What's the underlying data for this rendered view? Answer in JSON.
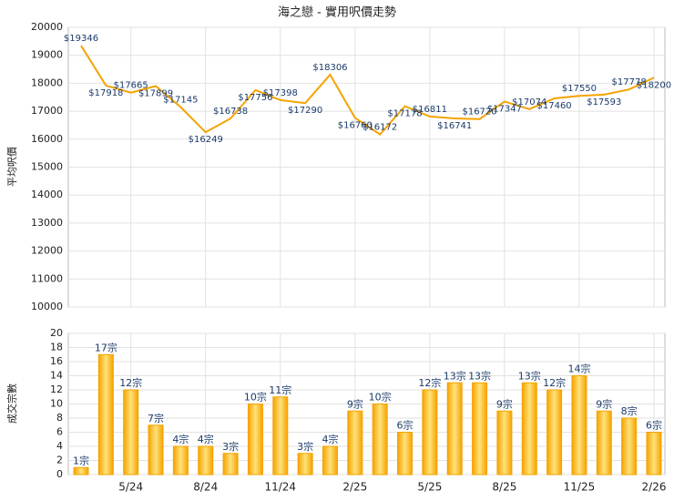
{
  "chart_data": [
    {
      "type": "line",
      "title": "海之戀 - 實用呎價走勢",
      "y_label": "平均呎價",
      "color": "#f5a300",
      "values": [
        19346,
        17918,
        17665,
        17899,
        17145,
        16249,
        16738,
        17756,
        17398,
        17290,
        18306,
        16760,
        16172,
        17178,
        16811,
        16741,
        16720,
        17347,
        17074,
        17460,
        17550,
        17593,
        17778,
        18200
      ],
      "value_labels": [
        "$19346",
        "$17918",
        "$17665",
        "$17899",
        "$17145",
        "$16249",
        "$16738",
        "$17756",
        "$17398",
        "$17290",
        "$18306",
        "$16760",
        "$16172",
        "$17178",
        "$16811",
        "$16741",
        "$16720",
        "$17347",
        "$17074",
        "$17460",
        "$17550",
        "$17593",
        "$17778",
        "$18200"
      ],
      "ylim": [
        10000,
        20000
      ],
      "yticks": [
        10000,
        11000,
        12000,
        13000,
        14000,
        15000,
        16000,
        17000,
        18000,
        19000,
        20000
      ],
      "grid": true
    },
    {
      "type": "bar",
      "y_label": "成交宗數",
      "color": "#f5a300",
      "categories": [
        null,
        null,
        "5/24",
        null,
        null,
        "8/24",
        null,
        null,
        "11/24",
        null,
        null,
        "2/25",
        null,
        null,
        "5/25",
        null,
        null,
        "8/25",
        null,
        null,
        "11/25",
        null,
        null,
        "2/26"
      ],
      "values": [
        1,
        17,
        12,
        7,
        4,
        4,
        3,
        10,
        11,
        3,
        4,
        9,
        10,
        6,
        12,
        13,
        13,
        9,
        13,
        12,
        14,
        9,
        8,
        6
      ],
      "value_labels": [
        "1宗",
        "17宗",
        "12宗",
        "7宗",
        "4宗",
        "4宗",
        "3宗",
        "10宗",
        "11宗",
        "3宗",
        "4宗",
        "9宗",
        "10宗",
        "6宗",
        "12宗",
        "13宗",
        "13宗",
        "9宗",
        "13宗",
        "12宗",
        "14宗",
        "9宗",
        "8宗",
        "6宗"
      ],
      "ylim": [
        0,
        20
      ],
      "yticks": [
        0,
        2,
        4,
        6,
        8,
        10,
        12,
        14,
        16,
        18,
        20
      ],
      "grid": true
    }
  ]
}
